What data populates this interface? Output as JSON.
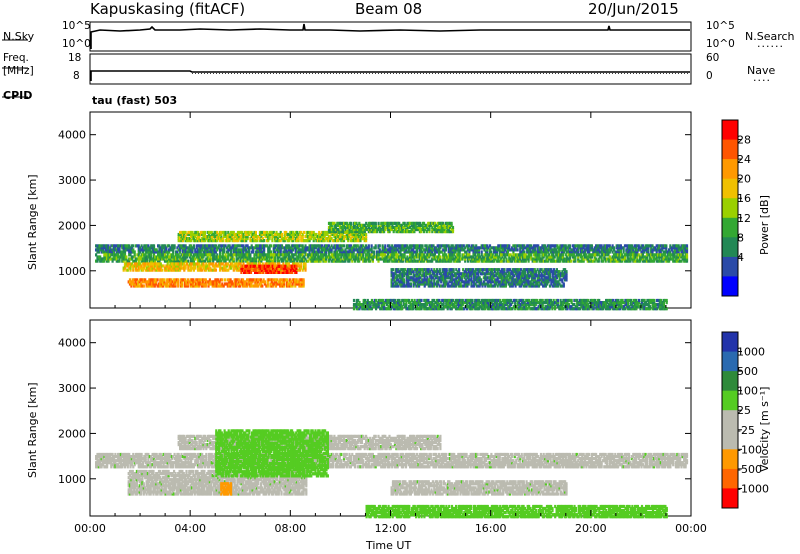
{
  "header": {
    "station": "Kapuskasing (fitACF)",
    "beam": "Beam 08",
    "date": "20/Jun/2015"
  },
  "top_panels": {
    "nsky_label": "N.Sky",
    "nsky_ticks": [
      "10^5",
      "10^0"
    ],
    "nsearch_label": "N.Search",
    "nsearch_ticks": [
      "10^5",
      "10^0"
    ],
    "freq_label_1": "Freq.",
    "freq_label_2": "[MHz]",
    "freq_ticks": [
      "18",
      "8"
    ],
    "nave_label": "Nave",
    "nave_ticks": [
      "60",
      "0"
    ],
    "cpid_label": "CPID",
    "cpid_text": "tau (fast) 503"
  },
  "power_colorbar": {
    "label": "Power [dB]",
    "ticks": [
      "28",
      "24",
      "20",
      "16",
      "12",
      "8",
      "4"
    ],
    "colors": [
      "#ff0000",
      "#ff5500",
      "#ff9900",
      "#f0c000",
      "#9ad000",
      "#33a833",
      "#228855",
      "#2a4aa8",
      "#0000ff"
    ]
  },
  "velocity_colorbar": {
    "label": "Velocity [m s⁻¹]",
    "ticks": [
      "1000",
      "500",
      "100",
      "25",
      "-25",
      "-100",
      "-500",
      "-1000"
    ],
    "colors": [
      "#2233aa",
      "#2a6ab0",
      "#2e8a3a",
      "#55cc22",
      "#bbbbb0",
      "#bbbbb0",
      "#ff9900",
      "#ff6600",
      "#ff0000"
    ]
  },
  "chart_data": [
    {
      "type": "heatmap",
      "title": "Power",
      "ylabel": "Slant Range [km]",
      "xlabel": "Time UT",
      "x_ticks": [
        "00:00",
        "04:00",
        "08:00",
        "12:00",
        "16:00",
        "20:00",
        "00:00"
      ],
      "y_ticks": [
        "4000",
        "3000",
        "2000",
        "1000"
      ],
      "ylim": [
        180,
        4500
      ],
      "xlim": [
        0,
        24
      ],
      "regions": [
        {
          "t0": 0.2,
          "t1": 23.8,
          "r0": 1450,
          "r1": 1600,
          "value": 8
        },
        {
          "t0": 0.2,
          "t1": 23.8,
          "r0": 1250,
          "r1": 1420,
          "value": 12
        },
        {
          "t0": 3.5,
          "t1": 11.0,
          "r0": 1700,
          "r1": 1900,
          "value": 16
        },
        {
          "t0": 1.3,
          "t1": 8.6,
          "r0": 1050,
          "r1": 1200,
          "value": 20
        },
        {
          "t0": 1.5,
          "t1": 8.5,
          "r0": 700,
          "r1": 850,
          "value": 24
        },
        {
          "t0": 6.0,
          "t1": 8.2,
          "r0": 1000,
          "r1": 1150,
          "value": 28
        },
        {
          "t0": 9.5,
          "t1": 14.5,
          "r0": 1900,
          "r1": 2100,
          "value": 12
        },
        {
          "t0": 12.0,
          "t1": 19.0,
          "r0": 700,
          "r1": 1100,
          "value": 8
        },
        {
          "t0": 10.5,
          "t1": 23.0,
          "r0": 200,
          "r1": 400,
          "value": 10
        }
      ]
    },
    {
      "type": "heatmap",
      "title": "Velocity",
      "ylabel": "Slant Range [km]",
      "xlabel": "Time UT",
      "x_ticks": [
        "00:00",
        "04:00",
        "08:00",
        "12:00",
        "16:00",
        "20:00",
        "00:00"
      ],
      "y_ticks": [
        "4000",
        "3000",
        "2000",
        "1000"
      ],
      "ylim": [
        180,
        4500
      ],
      "xlim": [
        0,
        24
      ],
      "regions": [
        {
          "t0": 0.2,
          "t1": 23.8,
          "r0": 1300,
          "r1": 1600,
          "value": 0
        },
        {
          "t0": 3.5,
          "t1": 14.0,
          "r0": 1700,
          "r1": 2000,
          "value": 0
        },
        {
          "t0": 1.5,
          "t1": 8.6,
          "r0": 700,
          "r1": 1200,
          "value": 0
        },
        {
          "t0": 12.0,
          "t1": 19.0,
          "r0": 700,
          "r1": 1000,
          "value": 0
        },
        {
          "t0": 5.0,
          "t1": 9.5,
          "r0": 1100,
          "r1": 2100,
          "value": 60
        },
        {
          "t0": 5.2,
          "t1": 5.6,
          "r0": 700,
          "r1": 950,
          "value": -200
        },
        {
          "t0": 11.0,
          "t1": 23.0,
          "r0": 200,
          "r1": 450,
          "value": 60
        }
      ]
    }
  ]
}
